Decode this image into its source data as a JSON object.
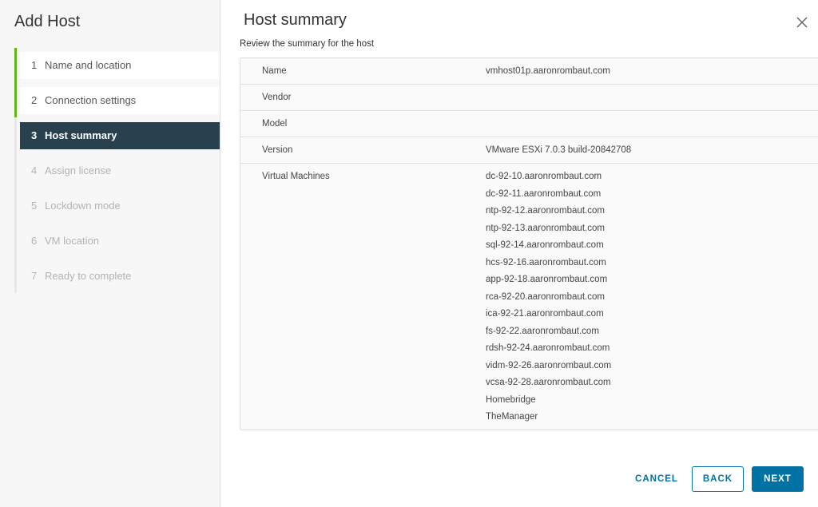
{
  "wizard": {
    "title": "Add Host",
    "steps": [
      {
        "num": "1",
        "label": "Name and location",
        "state": "done"
      },
      {
        "num": "2",
        "label": "Connection settings",
        "state": "done"
      },
      {
        "num": "3",
        "label": "Host summary",
        "state": "active"
      },
      {
        "num": "4",
        "label": "Assign license",
        "state": "todo"
      },
      {
        "num": "5",
        "label": "Lockdown mode",
        "state": "todo"
      },
      {
        "num": "6",
        "label": "VM location",
        "state": "todo"
      },
      {
        "num": "7",
        "label": "Ready to complete",
        "state": "todo"
      }
    ]
  },
  "main": {
    "title": "Host summary",
    "subtitle": "Review the summary for the host",
    "rows": [
      {
        "label": "Name",
        "value": "vmhost01p.aaronrombaut.com"
      },
      {
        "label": "Vendor",
        "value": ""
      },
      {
        "label": "Model",
        "value": ""
      },
      {
        "label": "Version",
        "value": "VMware ESXi 7.0.3 build-20842708"
      }
    ],
    "vm_label": "Virtual Machines",
    "vms": [
      "dc-92-10.aaronrombaut.com",
      "dc-92-11.aaronrombaut.com",
      "ntp-92-12.aaronrombaut.com",
      "ntp-92-13.aaronrombaut.com",
      "sql-92-14.aaronrombaut.com",
      "hcs-92-16.aaronrombaut.com",
      "app-92-18.aaronrombaut.com",
      "rca-92-20.aaronrombaut.com",
      "ica-92-21.aaronrombaut.com",
      "fs-92-22.aaronrombaut.com",
      "rdsh-92-24.aaronrombaut.com",
      "vidm-92-26.aaronrombaut.com",
      "vcsa-92-28.aaronrombaut.com",
      "Homebridge",
      "TheManager"
    ]
  },
  "footer": {
    "cancel": "CANCEL",
    "back": "BACK",
    "next": "NEXT"
  },
  "colors": {
    "accent": "#0072a3",
    "active_step": "#29414e",
    "done_bar": "#5eb715"
  }
}
